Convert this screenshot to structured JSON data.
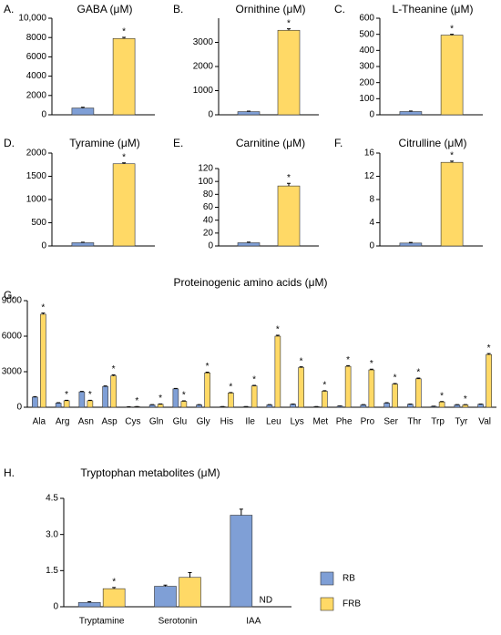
{
  "chart_data": [
    {
      "type": "bar",
      "label": "A.",
      "title": "GABA (μM)",
      "categories": [
        null
      ],
      "ylim": [
        0,
        10000
      ],
      "yticks": [
        0,
        2000,
        4000,
        6000,
        8000,
        {
          "value": 10000,
          "label": "10,000"
        }
      ],
      "series": [
        {
          "name": "RB",
          "color": "#7f9fd6",
          "values": [
            700
          ],
          "errors": [
            80
          ]
        },
        {
          "name": "FRB",
          "color": "#ffd966",
          "values": [
            7900
          ],
          "errors": [
            120
          ],
          "stars": [
            "*"
          ]
        }
      ]
    },
    {
      "type": "bar",
      "label": "B.",
      "title": "Ornithine (μM)",
      "categories": [
        null
      ],
      "ylim": [
        0,
        4000
      ],
      "yticks": [
        0,
        1000,
        2000,
        3000
      ],
      "series": [
        {
          "name": "RB",
          "color": "#7f9fd6",
          "values": [
            130
          ],
          "errors": [
            20
          ]
        },
        {
          "name": "FRB",
          "color": "#ffd966",
          "values": [
            3500
          ],
          "errors": [
            60
          ],
          "stars": [
            "*"
          ]
        }
      ]
    },
    {
      "type": "bar",
      "label": "C.",
      "title": "L-Theanine (μM)",
      "categories": [
        null
      ],
      "ylim": [
        0,
        600
      ],
      "yticks": [
        0,
        100,
        200,
        300,
        400,
        500,
        600
      ],
      "series": [
        {
          "name": "RB",
          "color": "#7f9fd6",
          "values": [
            20
          ],
          "errors": [
            3
          ]
        },
        {
          "name": "FRB",
          "color": "#ffd966",
          "values": [
            495
          ],
          "errors": [
            5
          ],
          "stars": [
            "*"
          ]
        }
      ]
    },
    {
      "type": "bar",
      "label": "D.",
      "title": "Tyramine (μM)",
      "categories": [
        null
      ],
      "ylim": [
        0,
        2000
      ],
      "yticks": [
        0,
        500,
        1000,
        1500,
        2000
      ],
      "series": [
        {
          "name": "RB",
          "color": "#7f9fd6",
          "values": [
            70
          ],
          "errors": [
            10
          ]
        },
        {
          "name": "FRB",
          "color": "#ffd966",
          "values": [
            1770
          ],
          "errors": [
            20
          ],
          "stars": [
            "*"
          ]
        }
      ]
    },
    {
      "type": "bar",
      "label": "E.",
      "title": "Carnitine (μM)",
      "categories": [
        null
      ],
      "ylim": [
        0,
        120
      ],
      "yticks": [
        0,
        20,
        40,
        60,
        80,
        100,
        120
      ],
      "series": [
        {
          "name": "RB",
          "color": "#7f9fd6",
          "values": [
            5
          ],
          "errors": [
            1
          ]
        },
        {
          "name": "FRB",
          "color": "#ffd966",
          "values": [
            93
          ],
          "errors": [
            4
          ],
          "stars": [
            "*"
          ]
        }
      ]
    },
    {
      "type": "bar",
      "label": "F.",
      "title": "Citrulline (μM)",
      "categories": [
        null
      ],
      "ylim": [
        0,
        16
      ],
      "yticks": [
        0,
        4,
        8,
        12,
        16
      ],
      "series": [
        {
          "name": "RB",
          "color": "#7f9fd6",
          "values": [
            0.5
          ],
          "errors": [
            0.1
          ]
        },
        {
          "name": "FRB",
          "color": "#ffd966",
          "values": [
            14.4
          ],
          "errors": [
            0.2
          ],
          "stars": [
            "*"
          ]
        }
      ]
    },
    {
      "type": "bar",
      "label": "G.",
      "title": "Proteinogenic amino acids (μM)",
      "categories": [
        "Ala",
        "Arg",
        "Asn",
        "Asp",
        "Cys",
        "Gln",
        "Glu",
        "Gly",
        "His",
        "Ile",
        "Leu",
        "Lys",
        "Met",
        "Phe",
        "Pro",
        "Ser",
        "Thr",
        "Trp",
        "Tyr",
        "Val"
      ],
      "ylim": [
        0,
        9000
      ],
      "yticks": [
        0,
        3000,
        6000,
        9000
      ],
      "series": [
        {
          "name": "RB",
          "color": "#7f9fd6",
          "values": [
            850,
            350,
            1300,
            1750,
            30,
            200,
            1550,
            200,
            50,
            50,
            200,
            250,
            50,
            100,
            200,
            350,
            250,
            80,
            200,
            250
          ],
          "errors": [
            40,
            30,
            40,
            50,
            5,
            20,
            40,
            20,
            10,
            10,
            20,
            20,
            10,
            10,
            20,
            30,
            20,
            10,
            20,
            20
          ]
        },
        {
          "name": "FRB",
          "color": "#ffd966",
          "values": [
            7850,
            550,
            550,
            2650,
            50,
            250,
            500,
            2900,
            1200,
            1800,
            6000,
            3350,
            1350,
            3450,
            3150,
            1950,
            2400,
            450,
            200,
            4450
          ],
          "errors": [
            100,
            40,
            40,
            80,
            10,
            30,
            40,
            60,
            40,
            50,
            80,
            60,
            40,
            60,
            60,
            50,
            60,
            30,
            20,
            80
          ],
          "stars": [
            "*",
            "*",
            "*",
            "*",
            "*",
            "*",
            "*",
            "*",
            "*",
            "*",
            "*",
            "*",
            "*",
            "*",
            "*",
            "*",
            "*",
            "*",
            "*",
            "*"
          ]
        }
      ]
    },
    {
      "type": "bar",
      "label": "H.",
      "title": "Tryptophan metabolites (μM)",
      "categories": [
        "Tryptamine",
        "Serotonin",
        "IAA"
      ],
      "ylim": [
        0,
        4.5
      ],
      "yticks": [
        0,
        1.5,
        {
          "value": 3,
          "label": "3.0"
        },
        4.5
      ],
      "legend": "right",
      "series": [
        {
          "name": "RB",
          "color": "#7f9fd6",
          "values": [
            0.18,
            0.85,
            3.8
          ],
          "errors": [
            0.03,
            0.05,
            0.25
          ]
        },
        {
          "name": "FRB",
          "color": "#ffd966",
          "values": [
            0.75,
            1.22,
            null
          ],
          "errors": [
            0.05,
            0.2,
            null
          ],
          "stars": [
            "*",
            null,
            null
          ],
          "value_labels": [
            null,
            null,
            "ND"
          ]
        }
      ]
    }
  ]
}
